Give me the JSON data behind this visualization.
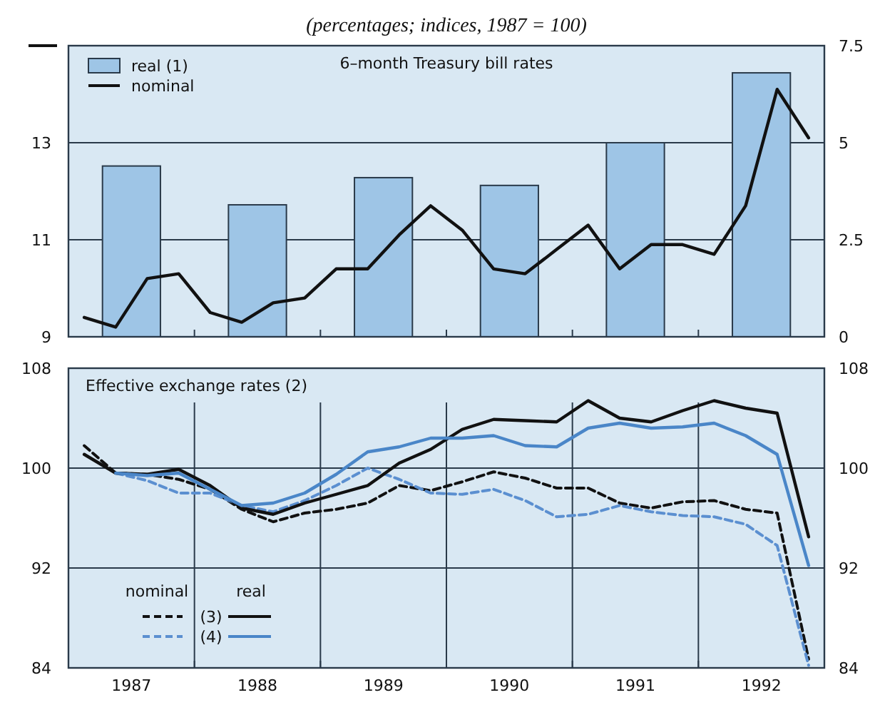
{
  "chart_data": [
    {
      "type": "line",
      "title": "6–month Treasury bill rates",
      "subtitle": "(percentages; indices, 1987 = 100)",
      "xlim": [
        1987,
        1993
      ],
      "xticks": [
        {
          "value": 1988,
          "label": null
        },
        {
          "value": 1989,
          "label": null
        },
        {
          "value": 1990,
          "label": null
        },
        {
          "value": 1991,
          "label": null
        },
        {
          "value": 1992,
          "label": null
        }
      ],
      "tick_labels": "y",
      "ylim": [
        9,
        15
      ],
      "yticks": [
        9,
        11,
        13,
        {
          "value": 15,
          "label": null
        }
      ],
      "y2lim": [
        0,
        7.5
      ],
      "y2ticks": [
        0,
        2.5,
        5,
        7.5
      ],
      "grid": "y",
      "legend": "top left",
      "x": [
        1987.125,
        1987.375,
        1987.625,
        1987.875,
        1988.125,
        1988.375,
        1988.625,
        1988.875,
        1989.125,
        1989.375,
        1989.625,
        1989.875,
        1990.125,
        1990.375,
        1990.625,
        1990.875,
        1991.125,
        1991.375,
        1991.625,
        1991.875,
        1992.125,
        1992.375,
        1992.625,
        1992.875
      ],
      "series": [
        {
          "name": "real (1)",
          "type": "bar",
          "axis": "y2",
          "color": "#9ec5e6",
          "x": [
            1987.5,
            1988.5,
            1989.5,
            1990.5,
            1991.5,
            1992.5
          ],
          "values": [
            4.4,
            3.4,
            4.1,
            3.9,
            5.0,
            6.8
          ]
        },
        {
          "name": "nominal",
          "line_style": "solid",
          "color": "#111111",
          "values": [
            9.4,
            9.2,
            10.2,
            10.3,
            9.5,
            9.3,
            9.7,
            9.8,
            10.4,
            10.4,
            11.1,
            11.7,
            11.2,
            10.4,
            10.3,
            10.8,
            11.3,
            10.4,
            10.9,
            10.9,
            10.7,
            11.7,
            14.1,
            13.1
          ]
        }
      ]
    },
    {
      "type": "line",
      "title": "Effective exchange rates (2)",
      "xlim": [
        1987,
        1993
      ],
      "xticks": [
        {
          "value": 1987.5,
          "label": "1987"
        },
        {
          "value": 1988,
          "label": null
        },
        {
          "value": 1988.5,
          "label": "1988"
        },
        {
          "value": 1989,
          "label": null
        },
        {
          "value": 1989.5,
          "label": "1989"
        },
        {
          "value": 1990,
          "label": null
        },
        {
          "value": 1990.5,
          "label": "1990"
        },
        {
          "value": 1991,
          "label": null
        },
        {
          "value": 1991.5,
          "label": "1991"
        },
        {
          "value": 1992,
          "label": null
        },
        {
          "value": 1992.5,
          "label": "1992"
        }
      ],
      "ylim": [
        84,
        108
      ],
      "yticks": [
        84,
        92,
        100,
        108
      ],
      "y2lim": [
        84,
        108
      ],
      "y2ticks": [
        84,
        92,
        100,
        108
      ],
      "grid": true,
      "legend": "bottom left",
      "annotations": [
        "nominal",
        "real"
      ],
      "x": [
        1987.125,
        1987.375,
        1987.625,
        1987.875,
        1988.125,
        1988.375,
        1988.625,
        1988.875,
        1989.125,
        1989.375,
        1989.625,
        1989.875,
        1990.125,
        1990.375,
        1990.625,
        1990.875,
        1991.125,
        1991.375,
        1991.625,
        1991.875,
        1992.125,
        1992.375,
        1992.625,
        1992.875
      ],
      "series": [
        {
          "name": "(3)",
          "line_style": "dashed",
          "color": "#111111",
          "values": [
            101.8,
            99.6,
            99.5,
            99.1,
            98.3,
            96.7,
            95.7,
            96.4,
            96.7,
            97.2,
            98.6,
            98.2,
            98.9,
            99.7,
            99.2,
            98.4,
            98.4,
            97.2,
            96.8,
            97.3,
            97.4,
            96.7,
            96.4,
            84.7
          ]
        },
        {
          "name": "(4)",
          "line_style": "dashed",
          "color": "#5b8fd0",
          "values": [
            null,
            99.6,
            99.0,
            98.0,
            98.0,
            97.0,
            96.5,
            97.4,
            98.6,
            100.0,
            99.1,
            98.0,
            97.9,
            98.3,
            97.4,
            96.1,
            96.3,
            97.0,
            96.5,
            96.2,
            96.1,
            95.5,
            93.8,
            84.2
          ]
        },
        {
          "line_style": "solid",
          "color": "#111111",
          "values": [
            101.1,
            99.6,
            99.5,
            99.9,
            98.6,
            96.8,
            96.3,
            97.2,
            97.9,
            98.6,
            100.4,
            101.5,
            103.1,
            103.9,
            103.8,
            103.7,
            105.4,
            104.0,
            103.7,
            104.6,
            105.4,
            104.8,
            104.4,
            94.5
          ]
        },
        {
          "line_style": "solid",
          "color": "#4a86c8",
          "values": [
            null,
            99.6,
            99.4,
            99.6,
            98.3,
            97.0,
            97.2,
            98.0,
            99.5,
            101.3,
            101.7,
            102.4,
            102.4,
            102.6,
            101.8,
            101.7,
            103.2,
            103.6,
            103.2,
            103.3,
            103.6,
            102.6,
            101.1,
            92.2
          ]
        }
      ]
    }
  ]
}
